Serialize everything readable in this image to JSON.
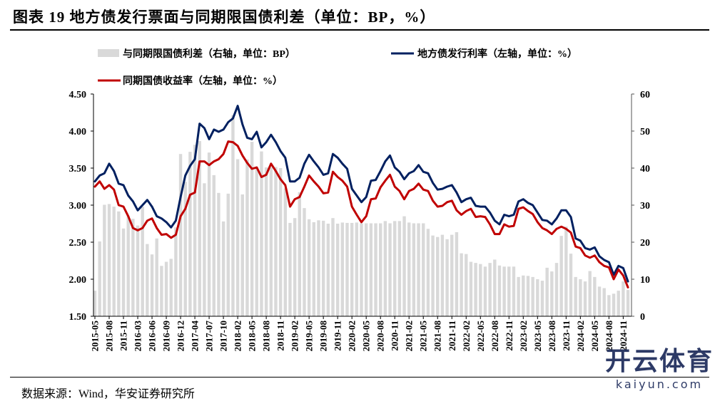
{
  "title": "图表 19  地方债发行票面与同期限国债利差（单位：BP，%）",
  "source": "数据来源：Wind，华安证券研究所",
  "watermark": {
    "cn": "开云体育",
    "en": "kaiyun.com"
  },
  "chart_data": {
    "type": "bar+line",
    "title": "地方债发行票面与同期限国债利差（单位：BP，%）",
    "left_axis": {
      "ticks": [
        "1.50",
        "2.00",
        "2.50",
        "3.00",
        "3.50",
        "4.00",
        "4.50"
      ],
      "ylim": [
        1.5,
        4.5
      ]
    },
    "right_axis": {
      "ticks": [
        "0",
        "10",
        "20",
        "30",
        "40",
        "50",
        "60"
      ],
      "ylim": [
        0,
        60
      ]
    },
    "x_tick_labels": [
      "2015-05",
      "2015-08",
      "2015-11",
      "2016-03",
      "2016-06",
      "2016-09",
      "2016-12",
      "2017-04",
      "2017-07",
      "2017-10",
      "2018-02",
      "2018-05",
      "2018-08",
      "2018-11",
      "2019-02",
      "2019-05",
      "2019-08",
      "2019-11",
      "2020-02",
      "2020-05",
      "2020-08",
      "2020-11",
      "2021-02",
      "2021-05",
      "2021-08",
      "2021-11",
      "2022-02",
      "2022-05",
      "2022-08",
      "2022-11",
      "2023-02",
      "2023-05",
      "2023-08",
      "2023-11",
      "2024-02",
      "2024-05",
      "2024-08",
      "2024-11"
    ],
    "colors": {
      "spread": "#d9d9d9",
      "local": "#002060",
      "treasury": "#c00000"
    },
    "series": [
      {
        "name": "与同期限国债利差（右轴，单位：BP）",
        "type": "bar",
        "axis": "right",
        "values": [
          6.9,
          20.2,
          30.1,
          30.3,
          29.6,
          28.3,
          23.7,
          27,
          26.3,
          24.5,
          29.6,
          19.5,
          16.7,
          21,
          13.6,
          14.7,
          15.5,
          24,
          43.8,
          36.3,
          44.4,
          46.3,
          47.3,
          35.9,
          44.2,
          38.1,
          33.3,
          25.6,
          33.1,
          54.3,
          42.4,
          32.9,
          42.3,
          47.1,
          40.2,
          44.5,
          40.2,
          40.2,
          40.3,
          40,
          34.5,
          25.2,
          26.5,
          33.5,
          29.2,
          26.2,
          25.4,
          25.9,
          25.8,
          25,
          26.5,
          25,
          25.3,
          25.2,
          25.2,
          25.3,
          25.1,
          25.1,
          25.1,
          25.1,
          25.1,
          25.7,
          25.1,
          25.7,
          25.7,
          27.0,
          25.3,
          25.1,
          25.1,
          25.1,
          23.6,
          21.8,
          21.4,
          22.0,
          20.8,
          22.0,
          22.7,
          17.0,
          16.8,
          14.7,
          14.4,
          14.1,
          13.4,
          14.4,
          15.3,
          13.7,
          13.4,
          13.4,
          13.4,
          10.6,
          11.0,
          10.9,
          10.6,
          10.0,
          9.6,
          13.1,
          12.1,
          14.4,
          21.7,
          24.2,
          16.9,
          10.6,
          10.0,
          9.4,
          12.2,
          10.6,
          8.0,
          7.6,
          5.7,
          6.1,
          6.9,
          9.4,
          7.1
        ]
      },
      {
        "name": "地方债发行利率（左轴，单位：%）",
        "type": "line",
        "axis": "left",
        "values": [
          3.32,
          3.4,
          3.43,
          3.56,
          3.46,
          3.29,
          3.27,
          3.13,
          3.05,
          2.93,
          3.0,
          3.07,
          2.98,
          2.85,
          2.82,
          2.77,
          2.7,
          2.79,
          3.11,
          3.4,
          3.53,
          3.62,
          4.1,
          4.04,
          3.89,
          4.02,
          3.99,
          4.02,
          4.12,
          4.17,
          4.34,
          4.09,
          3.91,
          3.89,
          3.99,
          3.78,
          3.85,
          3.95,
          3.85,
          3.73,
          3.64,
          3.32,
          3.32,
          3.37,
          3.56,
          3.68,
          3.59,
          3.51,
          3.41,
          3.43,
          3.69,
          3.64,
          3.56,
          3.49,
          3.22,
          3.13,
          3.04,
          3.11,
          3.33,
          3.34,
          3.46,
          3.59,
          3.67,
          3.51,
          3.45,
          3.35,
          3.43,
          3.46,
          3.54,
          3.45,
          3.43,
          3.3,
          3.21,
          3.22,
          3.25,
          3.27,
          3.17,
          3.04,
          3.08,
          3.1,
          2.99,
          2.98,
          2.98,
          2.9,
          2.79,
          2.74,
          2.87,
          2.85,
          2.87,
          3.05,
          3.08,
          3.03,
          3.0,
          2.9,
          2.8,
          2.79,
          2.74,
          2.82,
          2.93,
          2.93,
          2.84,
          2.55,
          2.52,
          2.42,
          2.4,
          2.43,
          2.31,
          2.26,
          2.23,
          2.06,
          2.18,
          2.15,
          1.97
        ]
      },
      {
        "name": "同期国债收益率（左轴，单位：%）",
        "type": "line",
        "axis": "left",
        "values": [
          3.25,
          3.32,
          3.22,
          3.27,
          3.21,
          3.0,
          2.98,
          2.85,
          2.69,
          2.66,
          2.69,
          2.79,
          2.82,
          2.69,
          2.6,
          2.61,
          2.56,
          2.6,
          2.85,
          2.95,
          3.14,
          3.17,
          3.59,
          3.59,
          3.54,
          3.59,
          3.62,
          3.69,
          3.86,
          3.85,
          3.8,
          3.67,
          3.57,
          3.49,
          3.51,
          3.38,
          3.41,
          3.56,
          3.46,
          3.35,
          3.27,
          2.98,
          3.08,
          3.11,
          3.25,
          3.4,
          3.32,
          3.25,
          3.16,
          3.17,
          3.45,
          3.38,
          3.33,
          3.25,
          2.98,
          2.87,
          2.77,
          2.85,
          3.08,
          3.09,
          3.24,
          3.33,
          3.41,
          3.25,
          3.19,
          3.08,
          3.19,
          3.22,
          3.29,
          3.21,
          3.19,
          3.06,
          2.98,
          2.99,
          3.04,
          3.06,
          2.93,
          2.87,
          2.92,
          2.95,
          2.84,
          2.85,
          2.84,
          2.74,
          2.61,
          2.61,
          2.74,
          2.71,
          2.72,
          2.95,
          2.97,
          2.92,
          2.88,
          2.77,
          2.69,
          2.66,
          2.61,
          2.68,
          2.71,
          2.68,
          2.63,
          2.44,
          2.42,
          2.32,
          2.29,
          2.32,
          2.23,
          2.18,
          2.16,
          2.0,
          2.13,
          2.05,
          1.89
        ]
      }
    ],
    "legend": "top",
    "grid": false
  }
}
